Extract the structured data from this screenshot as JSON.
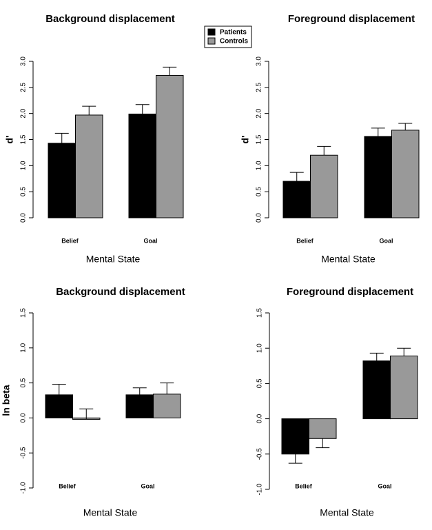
{
  "chart_data": [
    {
      "type": "bar",
      "title": "Background displacement",
      "x_label": "Mental State",
      "y_label": "d'",
      "categories": [
        "Belief",
        "Goal"
      ],
      "series": [
        {
          "name": "Patients",
          "color": "#000000",
          "values": [
            1.43,
            1.99
          ],
          "errors": [
            0.19,
            0.18
          ]
        },
        {
          "name": "Controls",
          "color": "#999999",
          "values": [
            1.97,
            2.73
          ],
          "errors": [
            0.17,
            0.16
          ]
        }
      ],
      "ylim": [
        0,
        3
      ],
      "yticks": [
        {
          "value": 0,
          "label": "0.0"
        },
        {
          "value": 0.5,
          "label": "0.5"
        },
        {
          "value": 1,
          "label": "1.0"
        },
        {
          "value": 1.5,
          "label": "1.5"
        },
        {
          "value": 2,
          "label": "2.0"
        },
        {
          "value": 2.5,
          "label": "2.5"
        },
        {
          "value": 3,
          "label": "3.0"
        }
      ],
      "legend": true
    },
    {
      "type": "bar",
      "title": "Foreground displacement",
      "x_label": "Mental State",
      "y_label": "d'",
      "categories": [
        "Belief",
        "Goal"
      ],
      "series": [
        {
          "color": "#000000",
          "values": [
            0.7,
            1.56
          ],
          "errors": [
            0.17,
            0.16
          ]
        },
        {
          "color": "#999999",
          "values": [
            1.2,
            1.68
          ],
          "errors": [
            0.17,
            0.13
          ]
        }
      ],
      "ylim": [
        0,
        3
      ],
      "yticks": [
        {
          "value": 0,
          "label": "0.0"
        },
        {
          "value": 0.5,
          "label": "0.5"
        },
        {
          "value": 1,
          "label": "1.0"
        },
        {
          "value": 1.5,
          "label": "1.5"
        },
        {
          "value": 2,
          "label": "2.0"
        },
        {
          "value": 2.5,
          "label": "2.5"
        },
        {
          "value": 3,
          "label": "3.0"
        }
      ]
    },
    {
      "type": "bar",
      "title": "Background displacement",
      "x_label": "Mental State",
      "y_label": "ln beta",
      "categories": [
        "Belief",
        "Goal"
      ],
      "series": [
        {
          "color": "#000000",
          "values": [
            0.33,
            0.33
          ],
          "errors": [
            0.15,
            0.1
          ]
        },
        {
          "color": "#999999",
          "values": [
            -0.02,
            0.34
          ],
          "errors": [
            0.15,
            0.16
          ]
        }
      ],
      "ylim": [
        -1,
        1.5
      ],
      "yticks": [
        {
          "value": -1,
          "label": "-1.0"
        },
        {
          "value": -0.5,
          "label": "-0.5"
        },
        {
          "value": 0,
          "label": "0.0"
        },
        {
          "value": 0.5,
          "label": "0.5"
        },
        {
          "value": 1,
          "label": "1.0"
        },
        {
          "value": 1.5,
          "label": "1.5"
        }
      ]
    },
    {
      "type": "bar",
      "title": "Foreground displacement",
      "x_label": "Mental State",
      "categories": [
        "Belief",
        "Goal"
      ],
      "series": [
        {
          "color": "#000000",
          "values": [
            -0.5,
            0.82
          ],
          "errors": [
            0.13,
            0.11
          ]
        },
        {
          "color": "#999999",
          "values": [
            -0.28,
            0.89
          ],
          "errors": [
            0.13,
            0.11
          ]
        }
      ],
      "ylim": [
        -1,
        1.5
      ],
      "yticks": [
        {
          "value": -1,
          "label": "-1.0"
        },
        {
          "value": -0.5,
          "label": "-0.5"
        },
        {
          "value": 0,
          "label": "0.0"
        },
        {
          "value": 0.5,
          "label": "0.5"
        },
        {
          "value": 1,
          "label": "1.0"
        },
        {
          "value": 1.5,
          "label": "1.5"
        }
      ]
    }
  ]
}
